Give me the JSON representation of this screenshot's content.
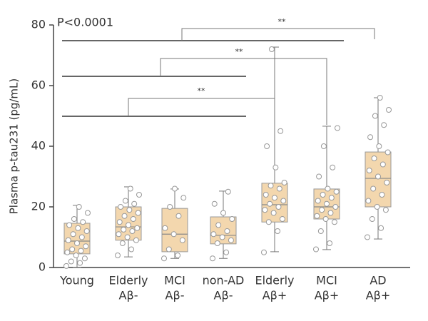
{
  "chart_data": {
    "type": "box",
    "y_label": "Plasma p-tau231 (pg/mL)",
    "annotation": "P<0.0001",
    "significance": [
      "**",
      "**",
      "**"
    ],
    "categories": [
      [
        "Young"
      ],
      [
        "Elderly",
        "Aβ-"
      ],
      [
        "MCI",
        "Aβ-"
      ],
      [
        "non-AD",
        "Aβ-"
      ],
      [
        "Elderly",
        "Aβ+"
      ],
      [
        "MCI",
        "Aβ+"
      ],
      [
        "AD",
        "Aβ+"
      ]
    ],
    "color": "#f3d7ae",
    "ylim": [
      0,
      80
    ],
    "yticks": [
      0,
      20,
      40,
      60,
      80
    ],
    "boxes": [
      {
        "min": 0,
        "q1": 4.5,
        "median": 8.7,
        "q3": 14.6,
        "max": 20.5,
        "points": [
          0.5,
          1.5,
          2,
          3,
          4,
          5,
          5.5,
          6,
          7,
          8,
          9,
          10,
          11,
          12,
          13,
          14,
          15,
          16,
          18,
          20
        ]
      },
      {
        "min": 3.5,
        "q1": 9,
        "median": 13.4,
        "q3": 20,
        "max": 26.6,
        "points": [
          4,
          6,
          8,
          9,
          10,
          11,
          12,
          12.5,
          13,
          14,
          15,
          16,
          17,
          18,
          19,
          20,
          21,
          22,
          24,
          26
        ]
      },
      {
        "min": 3,
        "q1": 5.2,
        "median": 11,
        "q3": 19.5,
        "max": 25.9,
        "points": [
          3,
          4,
          6,
          9,
          11,
          13,
          17,
          20,
          23,
          26
        ]
      },
      {
        "min": 3,
        "q1": 7.8,
        "median": 10.6,
        "q3": 16.7,
        "max": 25.2,
        "points": [
          3,
          5,
          8,
          9,
          10,
          11,
          12,
          14,
          16,
          18,
          21,
          25
        ]
      },
      {
        "min": 5.2,
        "q1": 15,
        "median": 20.7,
        "q3": 27.8,
        "max": 72.7,
        "points": [
          5,
          12,
          15,
          16,
          18,
          19,
          20,
          21,
          22,
          23,
          24,
          26,
          27,
          28,
          33,
          40,
          45,
          72
        ]
      },
      {
        "min": 5.9,
        "q1": 16,
        "median": 20,
        "q3": 25.9,
        "max": 46.6,
        "points": [
          6,
          8,
          12,
          15,
          16,
          17,
          18,
          19,
          20,
          21,
          22,
          23,
          24,
          25,
          26,
          30,
          33,
          40,
          46
        ]
      },
      {
        "min": 9.4,
        "q1": 20,
        "median": 29.4,
        "q3": 38.1,
        "max": 56,
        "points": [
          10,
          13,
          16,
          19,
          20,
          22,
          24,
          26,
          28,
          30,
          32,
          34,
          36,
          38,
          40,
          43,
          47,
          50,
          52,
          56
        ]
      }
    ]
  }
}
